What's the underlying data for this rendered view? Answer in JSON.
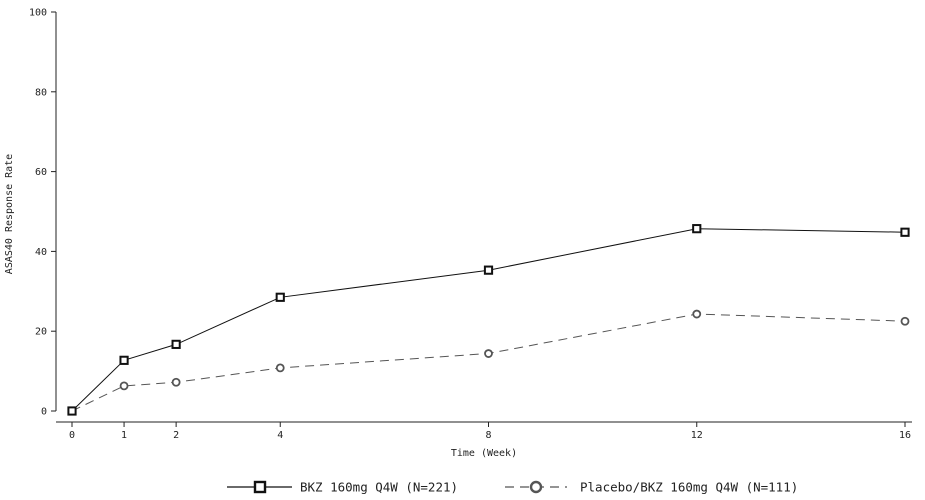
{
  "chart_data": {
    "type": "line",
    "title": "",
    "xlabel": "Time (Week)",
    "ylabel": "ASAS40 Response Rate",
    "x_ticks": [
      0,
      1,
      2,
      4,
      8,
      12,
      16
    ],
    "x_tick_labels": [
      "0",
      "1",
      "2",
      "4",
      "8",
      "12",
      "16"
    ],
    "y_ticks": [
      0,
      20,
      40,
      60,
      80,
      100
    ],
    "y_tick_labels": [
      "0",
      "20",
      "40",
      "60",
      "80",
      "100"
    ],
    "xlim": [
      -0.25,
      16.3
    ],
    "ylim": [
      0,
      100
    ],
    "grid": false,
    "legend_position": "bottom",
    "series": [
      {
        "name": "BKZ 160mg Q4W (N=221)",
        "x": [
          0,
          1,
          2,
          4,
          8,
          12,
          16
        ],
        "values": [
          0,
          12.7,
          16.7,
          28.5,
          35.3,
          45.7,
          44.8
        ],
        "marker": "square",
        "line_style": "solid",
        "color": "#111111"
      },
      {
        "name": "Placebo/BKZ 160mg Q4W (N=111)",
        "x": [
          0,
          1,
          2,
          4,
          8,
          12,
          16
        ],
        "values": [
          0,
          6.3,
          7.2,
          10.8,
          14.4,
          24.3,
          22.5
        ],
        "marker": "circle",
        "line_style": "dashed",
        "color": "#555555"
      }
    ]
  }
}
